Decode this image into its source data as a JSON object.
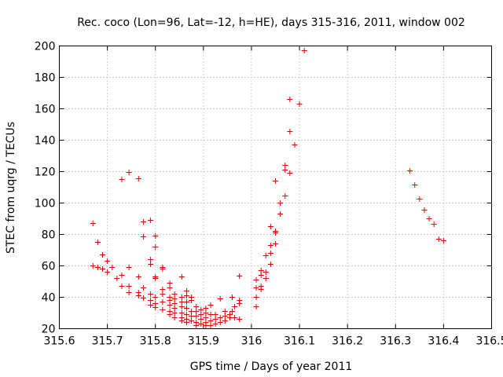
{
  "chart_data": {
    "type": "scatter",
    "title": "Rec. coco (Lon=96, Lat=-12, h=HE), days 315-316, 2011, window 002",
    "xlabel": "GPS time / Days of year 2011",
    "ylabel": "STEC from uqrg / TECUs",
    "xlim": [
      315.6,
      316.5
    ],
    "ylim": [
      20,
      200
    ],
    "x_ticks": [
      "315.6",
      "315.7",
      "315.8",
      "315.9",
      "316",
      "316.1",
      "316.2",
      "316.3",
      "316.4",
      "316.5"
    ],
    "x_tick_values": [
      315.6,
      315.7,
      315.8,
      315.9,
      316.0,
      316.1,
      316.2,
      316.3,
      316.4,
      316.5
    ],
    "y_ticks": [
      "20",
      "40",
      "60",
      "80",
      "100",
      "120",
      "140",
      "160",
      "180",
      "200"
    ],
    "y_tick_values": [
      20,
      40,
      60,
      80,
      100,
      120,
      140,
      160,
      180,
      200
    ],
    "grid": true,
    "marker": "plus",
    "color": "#e00000",
    "points": [
      [
        315.67,
        87.0
      ],
      [
        315.67,
        60.0
      ],
      [
        315.68,
        75.0
      ],
      [
        315.68,
        59.0
      ],
      [
        315.69,
        67.0
      ],
      [
        315.69,
        58.0
      ],
      [
        315.7,
        63.0
      ],
      [
        315.7,
        56.0
      ],
      [
        315.71,
        59.0
      ],
      [
        315.72,
        52.0
      ],
      [
        315.73,
        115.0
      ],
      [
        315.73,
        54.0
      ],
      [
        315.73,
        47.0
      ],
      [
        315.745,
        119.5
      ],
      [
        315.745,
        59.0
      ],
      [
        315.745,
        47.0
      ],
      [
        315.745,
        43.0
      ],
      [
        315.765,
        115.5
      ],
      [
        315.765,
        53.0
      ],
      [
        315.765,
        43.0
      ],
      [
        315.765,
        41.0
      ],
      [
        315.775,
        88.0
      ],
      [
        315.775,
        78.5
      ],
      [
        315.775,
        46.0
      ],
      [
        315.775,
        39.5
      ],
      [
        315.79,
        89.0
      ],
      [
        315.79,
        64.0
      ],
      [
        315.79,
        61.0
      ],
      [
        315.79,
        42.0
      ],
      [
        315.79,
        38.0
      ],
      [
        315.79,
        35.0
      ],
      [
        315.8,
        79.0
      ],
      [
        315.8,
        72.0
      ],
      [
        315.8,
        53.0
      ],
      [
        315.8,
        52.0
      ],
      [
        315.8,
        40.0
      ],
      [
        315.8,
        36.0
      ],
      [
        315.8,
        33.5
      ],
      [
        315.815,
        59.0
      ],
      [
        315.815,
        58.0
      ],
      [
        315.815,
        45.0
      ],
      [
        315.815,
        42.0
      ],
      [
        315.815,
        37.0
      ],
      [
        315.815,
        32.0
      ],
      [
        315.83,
        49.0
      ],
      [
        315.83,
        46.0
      ],
      [
        315.83,
        40.0
      ],
      [
        315.83,
        38.0
      ],
      [
        315.83,
        35.0
      ],
      [
        315.83,
        31.0
      ],
      [
        315.83,
        29.0
      ],
      [
        315.84,
        42.0
      ],
      [
        315.84,
        39.0
      ],
      [
        315.84,
        36.0
      ],
      [
        315.84,
        33.0
      ],
      [
        315.84,
        30.0
      ],
      [
        315.84,
        27.0
      ],
      [
        315.855,
        53.0
      ],
      [
        315.855,
        40.0
      ],
      [
        315.855,
        37.0
      ],
      [
        315.855,
        34.0
      ],
      [
        315.855,
        30.0
      ],
      [
        315.855,
        27.0
      ],
      [
        315.855,
        25.0
      ],
      [
        315.865,
        44.0
      ],
      [
        315.865,
        41.0
      ],
      [
        315.865,
        37.0
      ],
      [
        315.865,
        33.0
      ],
      [
        315.865,
        29.0
      ],
      [
        315.865,
        26.0
      ],
      [
        315.865,
        24.0
      ],
      [
        315.875,
        40.0
      ],
      [
        315.875,
        38.0
      ],
      [
        315.875,
        31.0
      ],
      [
        315.875,
        28.0
      ],
      [
        315.875,
        25.0
      ],
      [
        315.885,
        34.0
      ],
      [
        315.885,
        31.0
      ],
      [
        315.885,
        28.0
      ],
      [
        315.885,
        24.0
      ],
      [
        315.885,
        22.0
      ],
      [
        315.895,
        32.0
      ],
      [
        315.895,
        29.0
      ],
      [
        315.895,
        26.0
      ],
      [
        315.895,
        23.0
      ],
      [
        315.905,
        33.0
      ],
      [
        315.905,
        30.0
      ],
      [
        315.905,
        27.0
      ],
      [
        315.905,
        24.0
      ],
      [
        315.905,
        22.0
      ],
      [
        315.915,
        35.0
      ],
      [
        315.915,
        29.0
      ],
      [
        315.915,
        25.0
      ],
      [
        315.915,
        22.0
      ],
      [
        315.925,
        29.0
      ],
      [
        315.925,
        26.0
      ],
      [
        315.925,
        23.0
      ],
      [
        315.935,
        39.0
      ],
      [
        315.935,
        27.0
      ],
      [
        315.935,
        24.0
      ],
      [
        315.945,
        31.0
      ],
      [
        315.945,
        28.0
      ],
      [
        315.945,
        25.0
      ],
      [
        315.955,
        29.0
      ],
      [
        315.955,
        27.0
      ],
      [
        315.96,
        40.0
      ],
      [
        315.96,
        31.0
      ],
      [
        315.965,
        34.0
      ],
      [
        315.965,
        27.0
      ],
      [
        315.975,
        53.5
      ],
      [
        315.975,
        38.0
      ],
      [
        315.975,
        36.0
      ],
      [
        315.975,
        26.0
      ],
      [
        316.01,
        51.0
      ],
      [
        316.01,
        46.0
      ],
      [
        316.01,
        40.0
      ],
      [
        316.01,
        34.0
      ],
      [
        316.02,
        57.0
      ],
      [
        316.02,
        54.0
      ],
      [
        316.02,
        47.0
      ],
      [
        316.02,
        45.0
      ],
      [
        316.03,
        66.5
      ],
      [
        316.03,
        56.0
      ],
      [
        316.03,
        52.0
      ],
      [
        316.04,
        85.0
      ],
      [
        316.04,
        73.0
      ],
      [
        316.04,
        68.0
      ],
      [
        316.04,
        61.0
      ],
      [
        316.05,
        114.0
      ],
      [
        316.05,
        82.0
      ],
      [
        316.05,
        81.0
      ],
      [
        316.05,
        74.0
      ],
      [
        316.06,
        100.0
      ],
      [
        316.06,
        93.0
      ],
      [
        316.07,
        124.0
      ],
      [
        316.07,
        121.0
      ],
      [
        316.07,
        104.5
      ],
      [
        316.08,
        166.0
      ],
      [
        316.08,
        145.5
      ],
      [
        316.08,
        119.0
      ],
      [
        316.09,
        137.0
      ],
      [
        316.1,
        163.0
      ],
      [
        316.11,
        197.0
      ],
      [
        316.33,
        120.5
      ],
      [
        316.34,
        111.5
      ],
      [
        316.35,
        102.5
      ],
      [
        316.36,
        95.5
      ],
      [
        316.37,
        90.0
      ],
      [
        316.38,
        86.5
      ],
      [
        316.39,
        77.0
      ],
      [
        316.4,
        76.0
      ]
    ]
  }
}
